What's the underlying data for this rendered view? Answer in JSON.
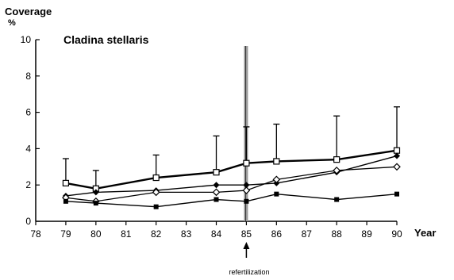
{
  "chart_data": {
    "type": "line",
    "title": "Cladina stellaris",
    "ylabel": "Coverage",
    "yunit": "%",
    "xlabel": "Year",
    "xlim": [
      78,
      90
    ],
    "ylim": [
      0,
      10
    ],
    "x_ticks": [
      "78",
      "79",
      "80",
      "81",
      "82",
      "83",
      "84",
      "85",
      "86",
      "87",
      "88",
      "89",
      "90"
    ],
    "y_ticks": [
      "0",
      "2",
      "4",
      "6",
      "8",
      "10"
    ],
    "grid": false,
    "legend": "none",
    "annotation": {
      "text": "refertilization",
      "x": 85
    },
    "series": [
      {
        "marker": "open-square",
        "x": [
          79,
          80,
          82,
          84,
          85,
          86,
          88,
          90
        ],
        "values": [
          2.1,
          1.8,
          2.4,
          2.7,
          3.2,
          3.3,
          3.4,
          3.9
        ],
        "err_upper": [
          3.45,
          2.8,
          3.65,
          4.7,
          5.2,
          5.35,
          5.8,
          6.3
        ]
      },
      {
        "marker": "filled-diamond",
        "x": [
          79,
          80,
          82,
          84,
          85,
          86,
          88,
          90
        ],
        "values": [
          1.4,
          1.6,
          1.7,
          2.0,
          2.0,
          2.1,
          2.7,
          3.6
        ],
        "err_upper": [
          null,
          null,
          null,
          null,
          null,
          null,
          null,
          null
        ]
      },
      {
        "marker": "open-diamond",
        "x": [
          79,
          80,
          82,
          84,
          85,
          86,
          88,
          90
        ],
        "values": [
          1.3,
          1.1,
          1.6,
          1.6,
          1.7,
          2.3,
          2.8,
          3.0
        ],
        "err_upper": [
          null,
          null,
          null,
          null,
          null,
          null,
          null,
          null
        ]
      },
      {
        "marker": "filled-square",
        "x": [
          79,
          80,
          82,
          84,
          85,
          86,
          88,
          90
        ],
        "values": [
          1.1,
          1.0,
          0.8,
          1.2,
          1.1,
          1.5,
          1.2,
          1.5
        ],
        "err_upper": [
          null,
          null,
          null,
          null,
          null,
          null,
          null,
          null
        ]
      }
    ]
  }
}
